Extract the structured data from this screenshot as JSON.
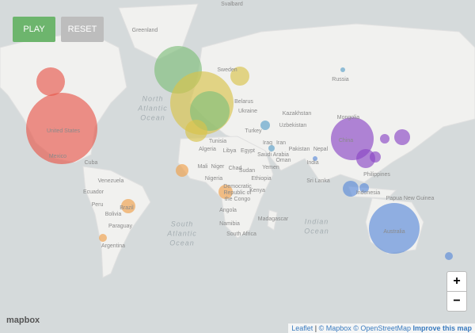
{
  "controls": {
    "play": "PLAY",
    "reset": "RESET",
    "zoom_in": "+",
    "zoom_out": "−"
  },
  "map": {
    "places": [
      "Greenland",
      "Svalbard",
      "Russia",
      "United States",
      "Mexico",
      "Cuba",
      "Venezuela",
      "Ecuador",
      "Peru",
      "Brazil",
      "Bolivia",
      "Paraguay",
      "Argentina",
      "Sweden",
      "Belarus",
      "Ukraine",
      "Turkey",
      "Kazakhstan",
      "Uzbekistan",
      "Iraq",
      "Iran",
      "Algeria",
      "Tunisia",
      "Libya",
      "Egypt",
      "Saudi Arabia",
      "Oman",
      "Mali",
      "Niger",
      "Chad",
      "Sudan",
      "Yemen",
      "Ethiopia",
      "Nigeria",
      "Kenya",
      "Angola",
      "Namibia",
      "South Africa",
      "Madagascar",
      "Pakistan",
      "Nepal",
      "India",
      "Sri Lanka",
      "China",
      "Mongolia",
      "Philippines",
      "Indonesia",
      "Papua New Guinea",
      "Australia"
    ],
    "multiline": [
      [
        "North",
        "Atlantic",
        "Ocean"
      ],
      [
        "South",
        "Atlantic",
        "Ocean"
      ],
      [
        "Indian",
        "Ocean"
      ],
      [
        "Democratic",
        "Republic of",
        "the Congo"
      ]
    ]
  },
  "attribution": {
    "logo": "mapbox",
    "leaflet": "Leaflet",
    "mapbox": "© Mapbox",
    "osm": "© OpenStreetMap",
    "improve": "Improve this map",
    "sep": "|"
  }
}
